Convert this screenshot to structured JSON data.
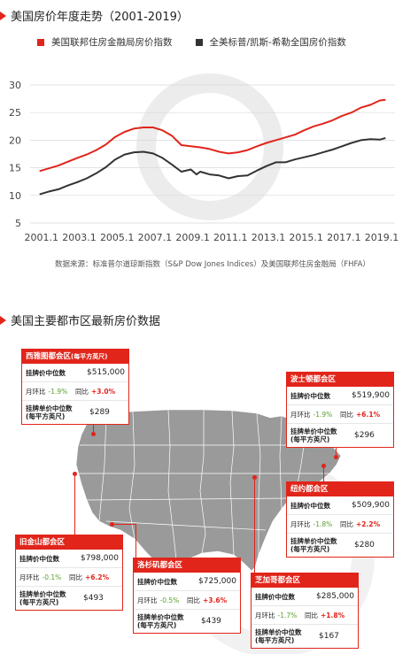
{
  "chart_title": "美国房价年度走势（2001-2019）",
  "legend": [
    {
      "label": "美国联邦住房金融局房价指数",
      "color": "#e1251b"
    },
    {
      "label": "全美标普/凯斯-希勒全国房价指数",
      "color": "#333333"
    }
  ],
  "source": "数据来源：标准普尔道琼斯指数（S&P Dow Jones Indices）及美国联邦住房金融局（FHFA）",
  "chart_data": {
    "type": "line",
    "title": "美国房价年度走势（2001-2019）",
    "xlabel": "",
    "ylabel": "",
    "xlim": [
      2000.5,
      2019.8
    ],
    "ylim": [
      5,
      30
    ],
    "yticks": [
      5,
      10,
      15,
      20,
      25,
      30
    ],
    "xticks": [
      "2001.1",
      "2003.1",
      "2005.1",
      "2007.1",
      "2009.1",
      "2011.1",
      "2013.1",
      "2015.1",
      "2017.1",
      "2019.1"
    ],
    "grid": true,
    "series": [
      {
        "name": "美国联邦住房金融局房价指数",
        "color": "#e1251b",
        "x": [
          2001.0,
          2001.5,
          2002.0,
          2002.5,
          2003.0,
          2003.5,
          2004.0,
          2004.5,
          2005.0,
          2005.5,
          2006.0,
          2006.5,
          2007.0,
          2007.5,
          2008.0,
          2008.5,
          2009.0,
          2009.5,
          2010.0,
          2010.5,
          2011.0,
          2011.5,
          2012.0,
          2012.5,
          2013.0,
          2013.5,
          2014.0,
          2014.5,
          2015.0,
          2015.5,
          2016.0,
          2016.5,
          2017.0,
          2017.5,
          2018.0,
          2018.5,
          2019.0,
          2019.3
        ],
        "y": [
          14.4,
          14.9,
          15.4,
          16.1,
          16.8,
          17.4,
          18.2,
          19.2,
          20.6,
          21.5,
          22.1,
          22.3,
          22.3,
          21.8,
          20.8,
          19.1,
          18.9,
          18.7,
          18.4,
          17.9,
          17.6,
          17.8,
          18.2,
          18.9,
          19.5,
          20.0,
          20.5,
          21.0,
          21.8,
          22.5,
          23.0,
          23.6,
          24.4,
          25.0,
          25.9,
          26.4,
          27.2,
          27.3
        ]
      },
      {
        "name": "全美标普/凯斯-希勒全国房价指数",
        "color": "#333333",
        "x": [
          2001.0,
          2001.5,
          2002.0,
          2002.5,
          2003.0,
          2003.5,
          2004.0,
          2004.5,
          2005.0,
          2005.5,
          2006.0,
          2006.5,
          2007.0,
          2007.5,
          2008.0,
          2008.5,
          2009.0,
          2009.3,
          2009.5,
          2010.0,
          2010.5,
          2011.0,
          2011.5,
          2012.0,
          2012.5,
          2013.0,
          2013.5,
          2014.0,
          2014.5,
          2015.0,
          2015.5,
          2016.0,
          2016.5,
          2017.0,
          2017.5,
          2018.0,
          2018.5,
          2019.0,
          2019.3
        ],
        "y": [
          10.2,
          10.7,
          11.1,
          11.8,
          12.4,
          13.1,
          14.0,
          15.1,
          16.5,
          17.4,
          17.8,
          17.9,
          17.6,
          16.8,
          15.6,
          14.3,
          14.7,
          13.8,
          14.3,
          13.8,
          13.6,
          13.1,
          13.5,
          13.6,
          14.5,
          15.3,
          16.0,
          16.0,
          16.5,
          16.9,
          17.3,
          17.8,
          18.3,
          18.9,
          19.5,
          20.0,
          20.2,
          20.1,
          20.4
        ]
      }
    ]
  },
  "map_title": "美国主要都市区最新房价数据",
  "row_labels": {
    "median_price": "挂牌价中位数",
    "mom": "月环比",
    "yoy": "同比",
    "unit_price_l1": "挂牌单价中位数",
    "unit_price_l2": "(每平方英尺)"
  },
  "cities": {
    "seattle": {
      "name": "西雅图都会区",
      "name_note": "(每平方英尺)",
      "price": "$515,000",
      "mom": "-1.9%",
      "yoy": "+3.0%",
      "unit": "$289"
    },
    "boston": {
      "name": "波士顿都会区",
      "price": "$519,900",
      "mom": "-1.9%",
      "yoy": "+6.1%",
      "unit": "$296"
    },
    "newyork": {
      "name": "纽约都会区",
      "price": "$509,900",
      "mom": "-1.8%",
      "yoy": "+2.2%",
      "unit": "$280"
    },
    "sf": {
      "name": "旧金山都会区",
      "price": "$798,000",
      "mom": "-0.1%",
      "yoy": "+6.2%",
      "unit": "$493"
    },
    "la": {
      "name": "洛杉矶都会区",
      "price": "$725,000",
      "mom": "-0.5%",
      "yoy": "+3.6%",
      "unit": "$439"
    },
    "chicago": {
      "name": "芝加哥都会区",
      "price": "$285,000",
      "mom": "-1.7%",
      "yoy": "+1.8%",
      "unit": "$167"
    }
  }
}
